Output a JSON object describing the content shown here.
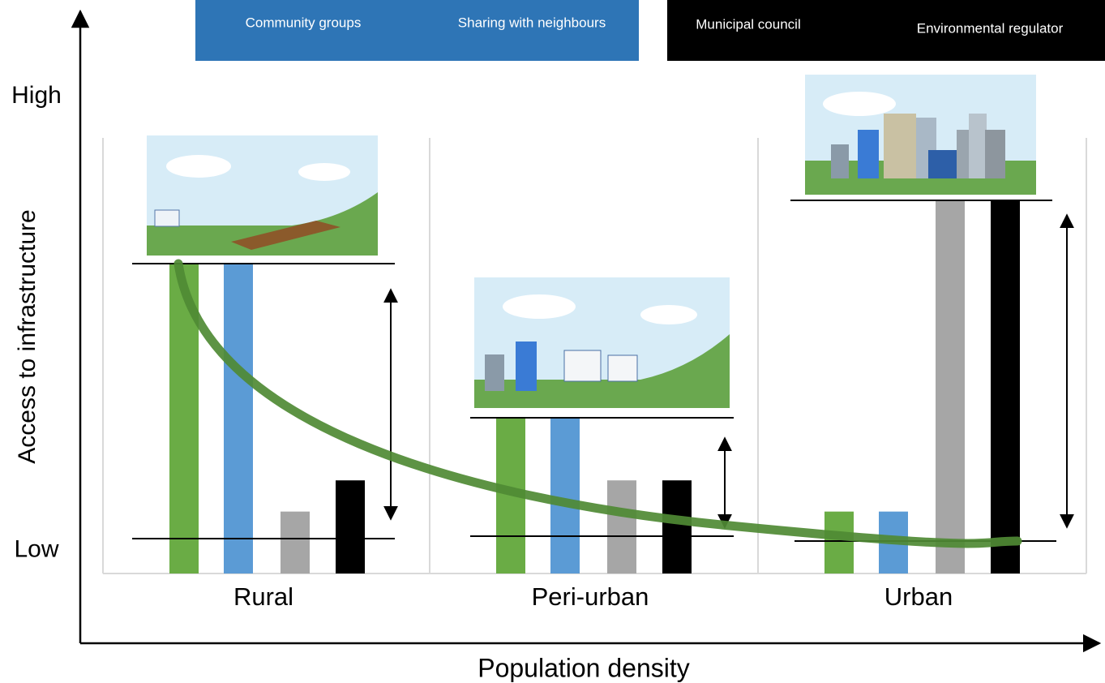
{
  "chart_data": {
    "type": "bar",
    "xlabel": "Population density",
    "ylabel": "Access to infrastructure",
    "categories": [
      "Rural",
      "Peri-urban",
      "Urban"
    ],
    "series": [
      {
        "name": "Community groups",
        "color": "#6aac45",
        "values": [
          6.65,
          3.33,
          1.33
        ]
      },
      {
        "name": "Sharing with neighbours",
        "color": "#5b9bd5",
        "values": [
          6.65,
          3.33,
          1.33
        ]
      },
      {
        "name": "Municipal council",
        "color": "#a6a6a6",
        "values": [
          1.33,
          2.0,
          8.0
        ]
      },
      {
        "name": "Environmental regulator",
        "color": "#000000",
        "values": [
          2.0,
          2.0,
          8.0
        ]
      }
    ],
    "ylim": [
      0,
      10
    ],
    "yticks": [
      {
        "value": 0.25,
        "label": "Low"
      },
      {
        "value": 10,
        "label": "High"
      }
    ]
  }
}
